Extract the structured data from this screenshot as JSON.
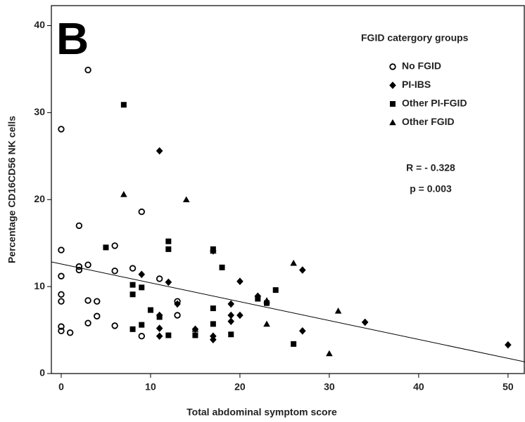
{
  "chart_data": {
    "type": "scatter",
    "annotation_letter": "B",
    "xlabel": "Total abdominal symptom score",
    "ylabel": "Percentage CD16CD56 NK cells",
    "legend_title": "FGID catergory groups",
    "legend_position": "upper right",
    "annotations": [
      "R = - 0.328",
      "p = 0.003"
    ],
    "xlim": [
      -1.1,
      51.9
    ],
    "ylim": [
      0,
      42.3
    ],
    "xticks": [
      0,
      10,
      20,
      30,
      40,
      50
    ],
    "yticks": [
      0,
      10,
      20,
      30,
      40
    ],
    "grid": false,
    "fit_line": {
      "intercept": 12.6,
      "slope": -0.217,
      "color": "#000000"
    },
    "series": [
      {
        "name": "No FGID",
        "color": "#000000",
        "marker": "circle-open",
        "x": [
          3,
          0,
          9,
          2,
          0,
          6,
          3,
          2,
          2,
          6,
          8,
          0,
          11,
          0,
          0,
          3,
          4,
          13,
          4,
          13,
          3,
          6,
          0,
          0,
          1,
          9
        ],
        "values": [
          34.9,
          28.1,
          18.6,
          17,
          14.2,
          14.7,
          12.5,
          12.3,
          11.9,
          11.8,
          12.1,
          11.2,
          10.9,
          9.1,
          8.3,
          8.4,
          8.3,
          8.3,
          6.6,
          6.7,
          5.8,
          5.5,
          5.4,
          4.9,
          4.7,
          4.3
        ]
      },
      {
        "name": "PI-IBS",
        "color": "#000000",
        "marker": "diamond",
        "x": [
          11,
          17,
          9,
          12,
          20,
          27,
          22,
          13,
          19,
          11,
          19,
          20,
          19,
          34,
          11,
          15,
          27,
          11,
          17,
          17,
          50
        ],
        "values": [
          25.6,
          14.1,
          11.4,
          10.5,
          10.6,
          11.9,
          8.9,
          8.0,
          8.0,
          6.7,
          6.7,
          6.7,
          6.0,
          5.9,
          5.2,
          5.1,
          4.9,
          4.3,
          4.3,
          3.9,
          3.3
        ]
      },
      {
        "name": "Other PI-FGID",
        "color": "#000000",
        "marker": "square",
        "x": [
          7,
          5,
          12,
          12,
          17,
          18,
          8,
          9,
          8,
          10,
          17,
          24,
          22,
          23,
          11,
          9,
          17,
          8,
          12,
          15,
          19,
          26
        ],
        "values": [
          30.9,
          14.5,
          15.2,
          14.3,
          14.3,
          12.2,
          10.2,
          9.9,
          9.1,
          7.3,
          7.5,
          9.6,
          8.6,
          8.1,
          6.5,
          5.6,
          5.7,
          5.1,
          4.4,
          4.4,
          4.5,
          3.4
        ]
      },
      {
        "name": "Other FGID",
        "color": "#000000",
        "marker": "triangle",
        "x": [
          7,
          14,
          17,
          26,
          23,
          31,
          23,
          15,
          30
        ],
        "values": [
          20.6,
          20,
          14.1,
          12.7,
          8.4,
          7.2,
          5.7,
          5.1,
          2.3
        ]
      }
    ]
  }
}
